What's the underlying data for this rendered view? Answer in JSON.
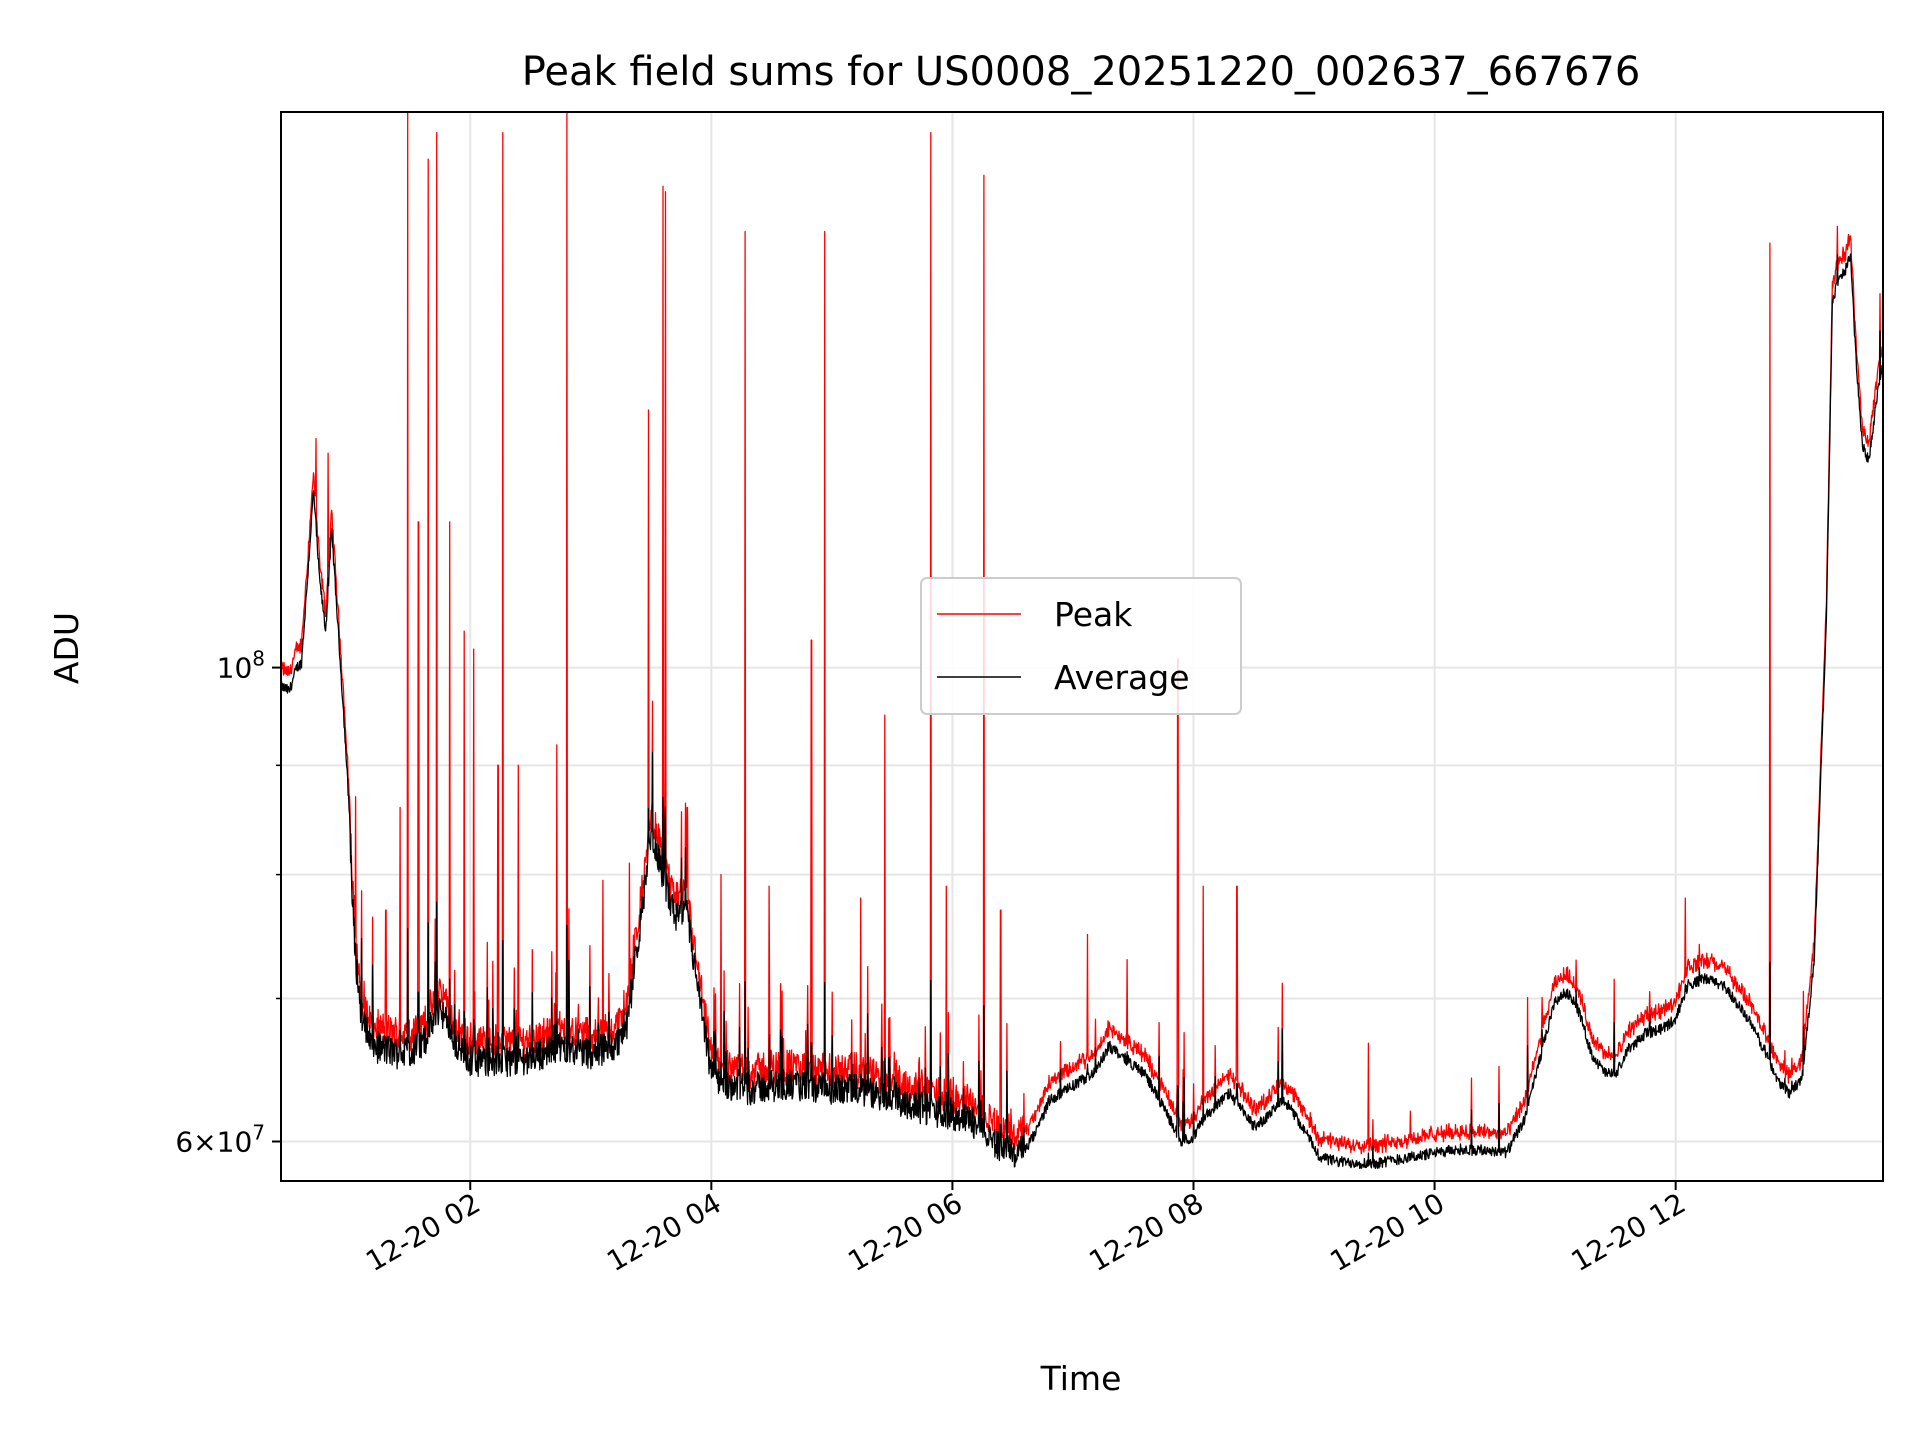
{
  "chart_data": {
    "type": "line",
    "title": "Peak field sums for US0008_20251220_002637_667676",
    "xlabel": "Time",
    "ylabel": "ADU",
    "x_unit": "hours since 12-20 00:00",
    "xlim": [
      0.43,
      13.72
    ],
    "ylim": [
      57500000,
      182000000
    ],
    "yscale": "log",
    "grid": true,
    "legend_position": "center",
    "x_ticks": [
      {
        "value": 2,
        "label": "12-20 02"
      },
      {
        "value": 4,
        "label": "12-20 04"
      },
      {
        "value": 6,
        "label": "12-20 06"
      },
      {
        "value": 8,
        "label": "12-20 08"
      },
      {
        "value": 10,
        "label": "12-20 10"
      },
      {
        "value": 12,
        "label": "12-20 12"
      }
    ],
    "y_major_ticks": [
      {
        "value": 60000000,
        "base": "6×10",
        "exp": "7"
      },
      {
        "value": 100000000,
        "base": "10",
        "exp": "8"
      }
    ],
    "y_minor_ticks": [
      70000000,
      80000000,
      90000000
    ],
    "series": [
      {
        "name": "Peak",
        "color": "#ff0000"
      },
      {
        "name": "Average",
        "color": "#000000"
      }
    ],
    "average_profile": [
      [
        0.43,
        98000000
      ],
      [
        0.5,
        97500000
      ],
      [
        0.56,
        100000000
      ],
      [
        0.6,
        100500000
      ],
      [
        0.65,
        110000000
      ],
      [
        0.7,
        121000000
      ],
      [
        0.75,
        110000000
      ],
      [
        0.8,
        104000000
      ],
      [
        0.85,
        116000000
      ],
      [
        0.9,
        105000000
      ],
      [
        0.95,
        95000000
      ],
      [
        1.0,
        85000000
      ],
      [
        1.02,
        78000000
      ],
      [
        1.05,
        73000000
      ],
      [
        1.1,
        68500000
      ],
      [
        1.2,
        66500000
      ],
      [
        1.4,
        66000000
      ],
      [
        1.6,
        66500000
      ],
      [
        1.75,
        69500000
      ],
      [
        1.85,
        67000000
      ],
      [
        2.0,
        65500000
      ],
      [
        2.2,
        65500000
      ],
      [
        2.4,
        65500000
      ],
      [
        2.6,
        66000000
      ],
      [
        2.8,
        66500000
      ],
      [
        3.0,
        66000000
      ],
      [
        3.2,
        66500000
      ],
      [
        3.3,
        68000000
      ],
      [
        3.42,
        76500000
      ],
      [
        3.5,
        84000000
      ],
      [
        3.55,
        82000000
      ],
      [
        3.62,
        79000000
      ],
      [
        3.7,
        76500000
      ],
      [
        3.8,
        76500000
      ],
      [
        3.9,
        70000000
      ],
      [
        4.0,
        64500000
      ],
      [
        4.1,
        64000000
      ],
      [
        4.3,
        63500000
      ],
      [
        4.6,
        63800000
      ],
      [
        4.9,
        63500000
      ],
      [
        5.2,
        63400000
      ],
      [
        5.5,
        63000000
      ],
      [
        5.7,
        62300000
      ],
      [
        6.0,
        61800000
      ],
      [
        6.2,
        61200000
      ],
      [
        6.35,
        60000000
      ],
      [
        6.5,
        59200000
      ],
      [
        6.6,
        59400000
      ],
      [
        6.7,
        60700000
      ],
      [
        6.8,
        62700000
      ],
      [
        7.0,
        63700000
      ],
      [
        7.2,
        64800000
      ],
      [
        7.3,
        66500000
      ],
      [
        7.45,
        65500000
      ],
      [
        7.6,
        64500000
      ],
      [
        7.8,
        61500000
      ],
      [
        7.9,
        60000000
      ],
      [
        8.0,
        60300000
      ],
      [
        8.1,
        61700000
      ],
      [
        8.3,
        63200000
      ],
      [
        8.5,
        61000000
      ],
      [
        8.6,
        61500000
      ],
      [
        8.75,
        62800000
      ],
      [
        8.9,
        61000000
      ],
      [
        9.05,
        59000000
      ],
      [
        9.2,
        58700000
      ],
      [
        9.5,
        58600000
      ],
      [
        9.8,
        59000000
      ],
      [
        10.2,
        59500000
      ],
      [
        10.5,
        59400000
      ],
      [
        10.6,
        59300000
      ],
      [
        10.75,
        61500000
      ],
      [
        10.9,
        66500000
      ],
      [
        11.0,
        69800000
      ],
      [
        11.1,
        70500000
      ],
      [
        11.2,
        69000000
      ],
      [
        11.3,
        66000000
      ],
      [
        11.4,
        64700000
      ],
      [
        11.5,
        64400000
      ],
      [
        11.6,
        66200000
      ],
      [
        11.75,
        67400000
      ],
      [
        11.9,
        67800000
      ],
      [
        12.0,
        68500000
      ],
      [
        12.1,
        71000000
      ],
      [
        12.25,
        71500000
      ],
      [
        12.4,
        71000000
      ],
      [
        12.6,
        68500000
      ],
      [
        12.75,
        66000000
      ],
      [
        12.85,
        64000000
      ],
      [
        12.95,
        63200000
      ],
      [
        13.05,
        64300000
      ],
      [
        13.15,
        73000000
      ],
      [
        13.25,
        105000000
      ],
      [
        13.3,
        148000000
      ],
      [
        13.35,
        152000000
      ],
      [
        13.4,
        153000000
      ],
      [
        13.45,
        156000000
      ],
      [
        13.5,
        138000000
      ],
      [
        13.55,
        127000000
      ],
      [
        13.6,
        125000000
      ],
      [
        13.68,
        135000000
      ],
      [
        13.72,
        139000000
      ]
    ],
    "peak_spikes": [
      [
        0.72,
        128000000
      ],
      [
        0.82,
        126000000
      ],
      [
        1.05,
        87000000
      ],
      [
        1.3,
        77000000
      ],
      [
        1.42,
        86000000
      ],
      [
        1.48,
        182000000
      ],
      [
        1.57,
        117000000
      ],
      [
        1.65,
        173000000
      ],
      [
        1.72,
        178000000
      ],
      [
        1.83,
        117000000
      ],
      [
        1.95,
        104000000
      ],
      [
        2.03,
        102000000
      ],
      [
        2.23,
        90000000
      ],
      [
        2.27,
        178000000
      ],
      [
        2.4,
        90000000
      ],
      [
        2.72,
        92000000
      ],
      [
        2.8,
        182000000
      ],
      [
        3.1,
        79500000
      ],
      [
        3.32,
        81000000
      ],
      [
        3.48,
        132000000
      ],
      [
        3.6,
        168000000
      ],
      [
        3.62,
        167000000
      ],
      [
        3.8,
        86000000
      ],
      [
        4.08,
        80000000
      ],
      [
        4.28,
        160000000
      ],
      [
        4.48,
        79000000
      ],
      [
        4.83,
        103000000
      ],
      [
        4.94,
        160000000
      ],
      [
        5.24,
        78000000
      ],
      [
        5.44,
        95000000
      ],
      [
        5.82,
        178000000
      ],
      [
        5.95,
        79000000
      ],
      [
        6.26,
        170000000
      ],
      [
        6.4,
        77000000
      ],
      [
        7.12,
        75000000
      ],
      [
        7.45,
        73000000
      ],
      [
        7.87,
        101000000
      ],
      [
        8.08,
        79000000
      ],
      [
        8.36,
        79000000
      ],
      [
        9.45,
        66700000
      ],
      [
        9.8,
        62000000
      ],
      [
        12.08,
        78000000
      ],
      [
        12.78,
        158000000
      ]
    ]
  }
}
